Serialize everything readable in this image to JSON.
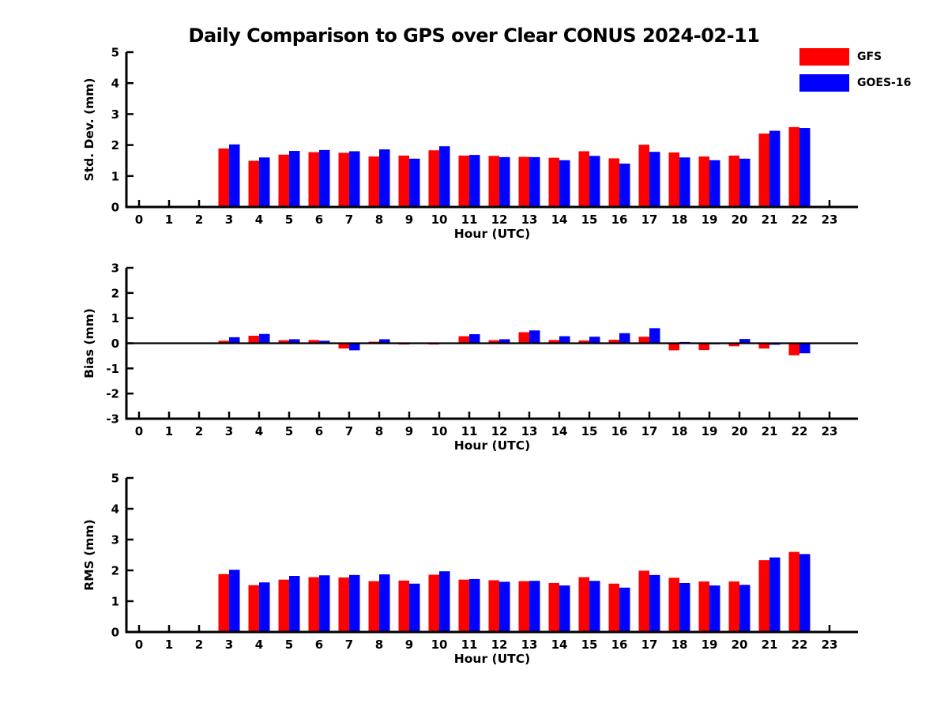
{
  "title": "Daily Comparison to GPS over Clear CONUS 2024-02-11",
  "legend": {
    "position": "top-right",
    "items": [
      {
        "label": "GFS",
        "color": "#ff0000"
      },
      {
        "label": "GOES-16",
        "color": "#0000ff"
      }
    ]
  },
  "chart_data": [
    {
      "type": "bar",
      "name": "stddev",
      "ylabel": "Std. Dev. (mm)",
      "xlabel": "Hour (UTC)",
      "ylim": [
        0,
        5
      ],
      "yticks": [
        0,
        1,
        2,
        3,
        4,
        5
      ],
      "grid": false,
      "categories": [
        "0",
        "1",
        "2",
        "3",
        "4",
        "5",
        "6",
        "7",
        "8",
        "9",
        "10",
        "11",
        "12",
        "13",
        "14",
        "15",
        "16",
        "17",
        "18",
        "19",
        "20",
        "21",
        "22",
        "23"
      ],
      "series": [
        {
          "name": "GFS",
          "color": "#ff0000",
          "values": [
            null,
            null,
            null,
            1.89,
            1.49,
            1.69,
            1.77,
            1.75,
            1.63,
            1.66,
            1.83,
            1.66,
            1.65,
            1.62,
            1.59,
            1.8,
            1.57,
            2.01,
            1.76,
            1.63,
            1.66,
            2.37,
            2.58,
            null
          ]
        },
        {
          "name": "GOES-16",
          "color": "#0000ff",
          "values": [
            null,
            null,
            null,
            2.02,
            1.6,
            1.81,
            1.84,
            1.8,
            1.86,
            1.56,
            1.96,
            1.68,
            1.61,
            1.61,
            1.51,
            1.65,
            1.4,
            1.78,
            1.6,
            1.51,
            1.56,
            2.46,
            2.55,
            null
          ]
        }
      ]
    },
    {
      "type": "bar",
      "name": "bias",
      "ylabel": "Bias (mm)",
      "xlabel": "Hour (UTC)",
      "ylim": [
        -3,
        3
      ],
      "yticks": [
        -3,
        -2,
        -1,
        0,
        1,
        2,
        3
      ],
      "zero_line": true,
      "grid": false,
      "categories": [
        "0",
        "1",
        "2",
        "3",
        "4",
        "5",
        "6",
        "7",
        "8",
        "9",
        "10",
        "11",
        "12",
        "13",
        "14",
        "15",
        "16",
        "17",
        "18",
        "19",
        "20",
        "21",
        "22",
        "23"
      ],
      "series": [
        {
          "name": "GFS",
          "color": "#ff0000",
          "values": [
            null,
            null,
            null,
            0.1,
            0.3,
            0.12,
            0.13,
            -0.21,
            0.06,
            -0.05,
            -0.05,
            0.28,
            0.12,
            0.44,
            0.13,
            0.11,
            0.14,
            0.26,
            -0.28,
            -0.27,
            -0.12,
            -0.21,
            -0.48,
            null
          ]
        },
        {
          "name": "GOES-16",
          "color": "#0000ff",
          "values": [
            null,
            null,
            null,
            0.24,
            0.37,
            0.16,
            0.1,
            -0.28,
            0.16,
            -0.03,
            0.03,
            0.36,
            0.16,
            0.51,
            0.28,
            0.26,
            0.4,
            0.6,
            0.05,
            -0.04,
            0.17,
            -0.06,
            -0.4,
            null
          ]
        }
      ]
    },
    {
      "type": "bar",
      "name": "rms",
      "ylabel": "RMS (mm)",
      "xlabel": "Hour (UTC)",
      "ylim": [
        0,
        5
      ],
      "yticks": [
        0,
        1,
        2,
        3,
        4,
        5
      ],
      "grid": false,
      "categories": [
        "0",
        "1",
        "2",
        "3",
        "4",
        "5",
        "6",
        "7",
        "8",
        "9",
        "10",
        "11",
        "12",
        "13",
        "14",
        "15",
        "16",
        "17",
        "18",
        "19",
        "20",
        "21",
        "22",
        "23"
      ],
      "series": [
        {
          "name": "GFS",
          "color": "#ff0000",
          "values": [
            null,
            null,
            null,
            1.88,
            1.52,
            1.7,
            1.78,
            1.77,
            1.65,
            1.67,
            1.86,
            1.7,
            1.68,
            1.65,
            1.59,
            1.78,
            1.57,
            1.99,
            1.76,
            1.64,
            1.64,
            2.33,
            2.6,
            null
          ]
        },
        {
          "name": "GOES-16",
          "color": "#0000ff",
          "values": [
            null,
            null,
            null,
            2.02,
            1.61,
            1.82,
            1.84,
            1.85,
            1.87,
            1.57,
            1.97,
            1.72,
            1.63,
            1.66,
            1.51,
            1.66,
            1.44,
            1.85,
            1.59,
            1.51,
            1.53,
            2.42,
            2.53,
            null
          ]
        }
      ]
    }
  ]
}
